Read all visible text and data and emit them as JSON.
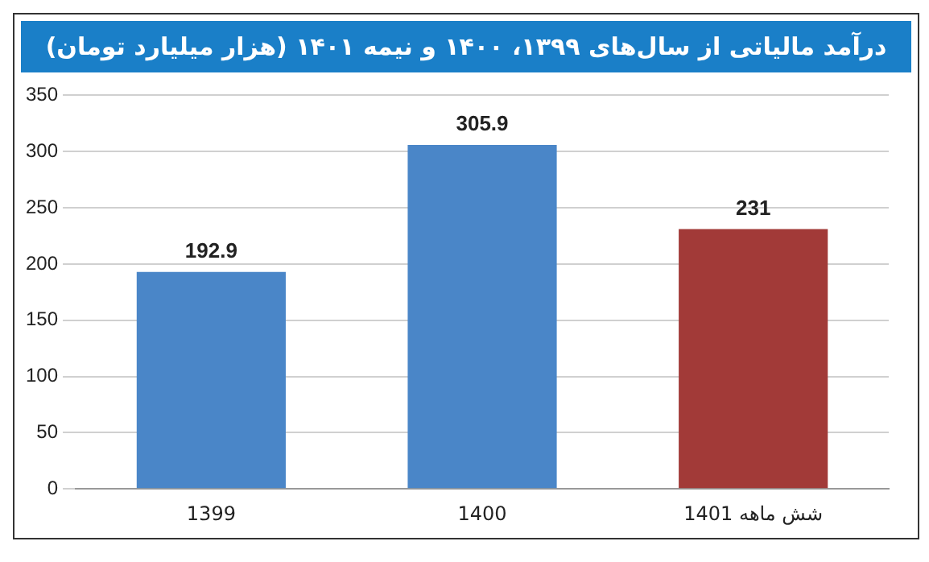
{
  "chart_data": {
    "type": "bar",
    "title": "درآمد مالیاتی از سال‌های ۱۳۹۹، ۱۴۰۰ و نیمه ۱۴۰۱ (هزار میلیارد تومان)",
    "categories": [
      "1399",
      "1400",
      "شش ماهه 1401"
    ],
    "values": [
      192.9,
      305.9,
      231
    ],
    "colors": [
      "#4a86c8",
      "#4a86c8",
      "#a23a38"
    ],
    "ylim": [
      0,
      350
    ],
    "yticks": [
      0,
      50,
      100,
      150,
      200,
      250,
      300,
      350
    ],
    "grid": "y",
    "data_labels": true,
    "legend": false
  }
}
